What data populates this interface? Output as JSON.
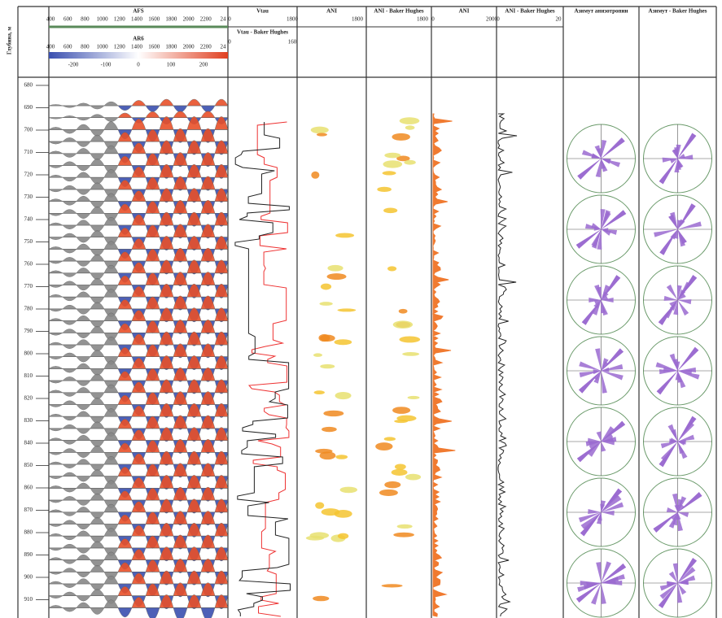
{
  "depth_track": {
    "title": "Глубина, м",
    "labels": [
      "680",
      "690",
      "700",
      "710",
      "720",
      "730",
      "740",
      "750",
      "760",
      "770",
      "780",
      "790",
      "800",
      "810",
      "820",
      "830",
      "840",
      "850",
      "860",
      "870",
      "880",
      "890",
      "900",
      "910"
    ]
  },
  "tracks": [
    {
      "title": "AFS",
      "scale": [
        "400",
        "600",
        "800",
        "1000",
        "1200",
        "1400",
        "1600",
        "1800",
        "2000",
        "2200",
        "24"
      ],
      "title2": "AR6",
      "scale2": [
        "400",
        "600",
        "800",
        "1000",
        "1200",
        "1400",
        "1600",
        "1800",
        "2000",
        "2200",
        "24"
      ],
      "scale3": [
        "-200",
        "-100",
        "0",
        "100",
        "200"
      ]
    },
    {
      "title": "Vtau",
      "scale": [
        "0",
        "1800"
      ],
      "title2": "Vtau - Baker Hughes",
      "scale2": [
        "0",
        "160"
      ]
    },
    {
      "title": "ANI",
      "scale": [
        "1800"
      ]
    },
    {
      "title": "ANI - Baker Hughes",
      "scale": [
        "1800"
      ]
    },
    {
      "title": "ANI",
      "scale": [
        "0",
        "2000"
      ]
    },
    {
      "title": "ANI - Baker Hughes",
      "scale": [
        "0",
        "20"
      ]
    },
    {
      "title": "Азимут анизотропии"
    },
    {
      "title": "Азимут - Baker Hughes"
    }
  ]
}
